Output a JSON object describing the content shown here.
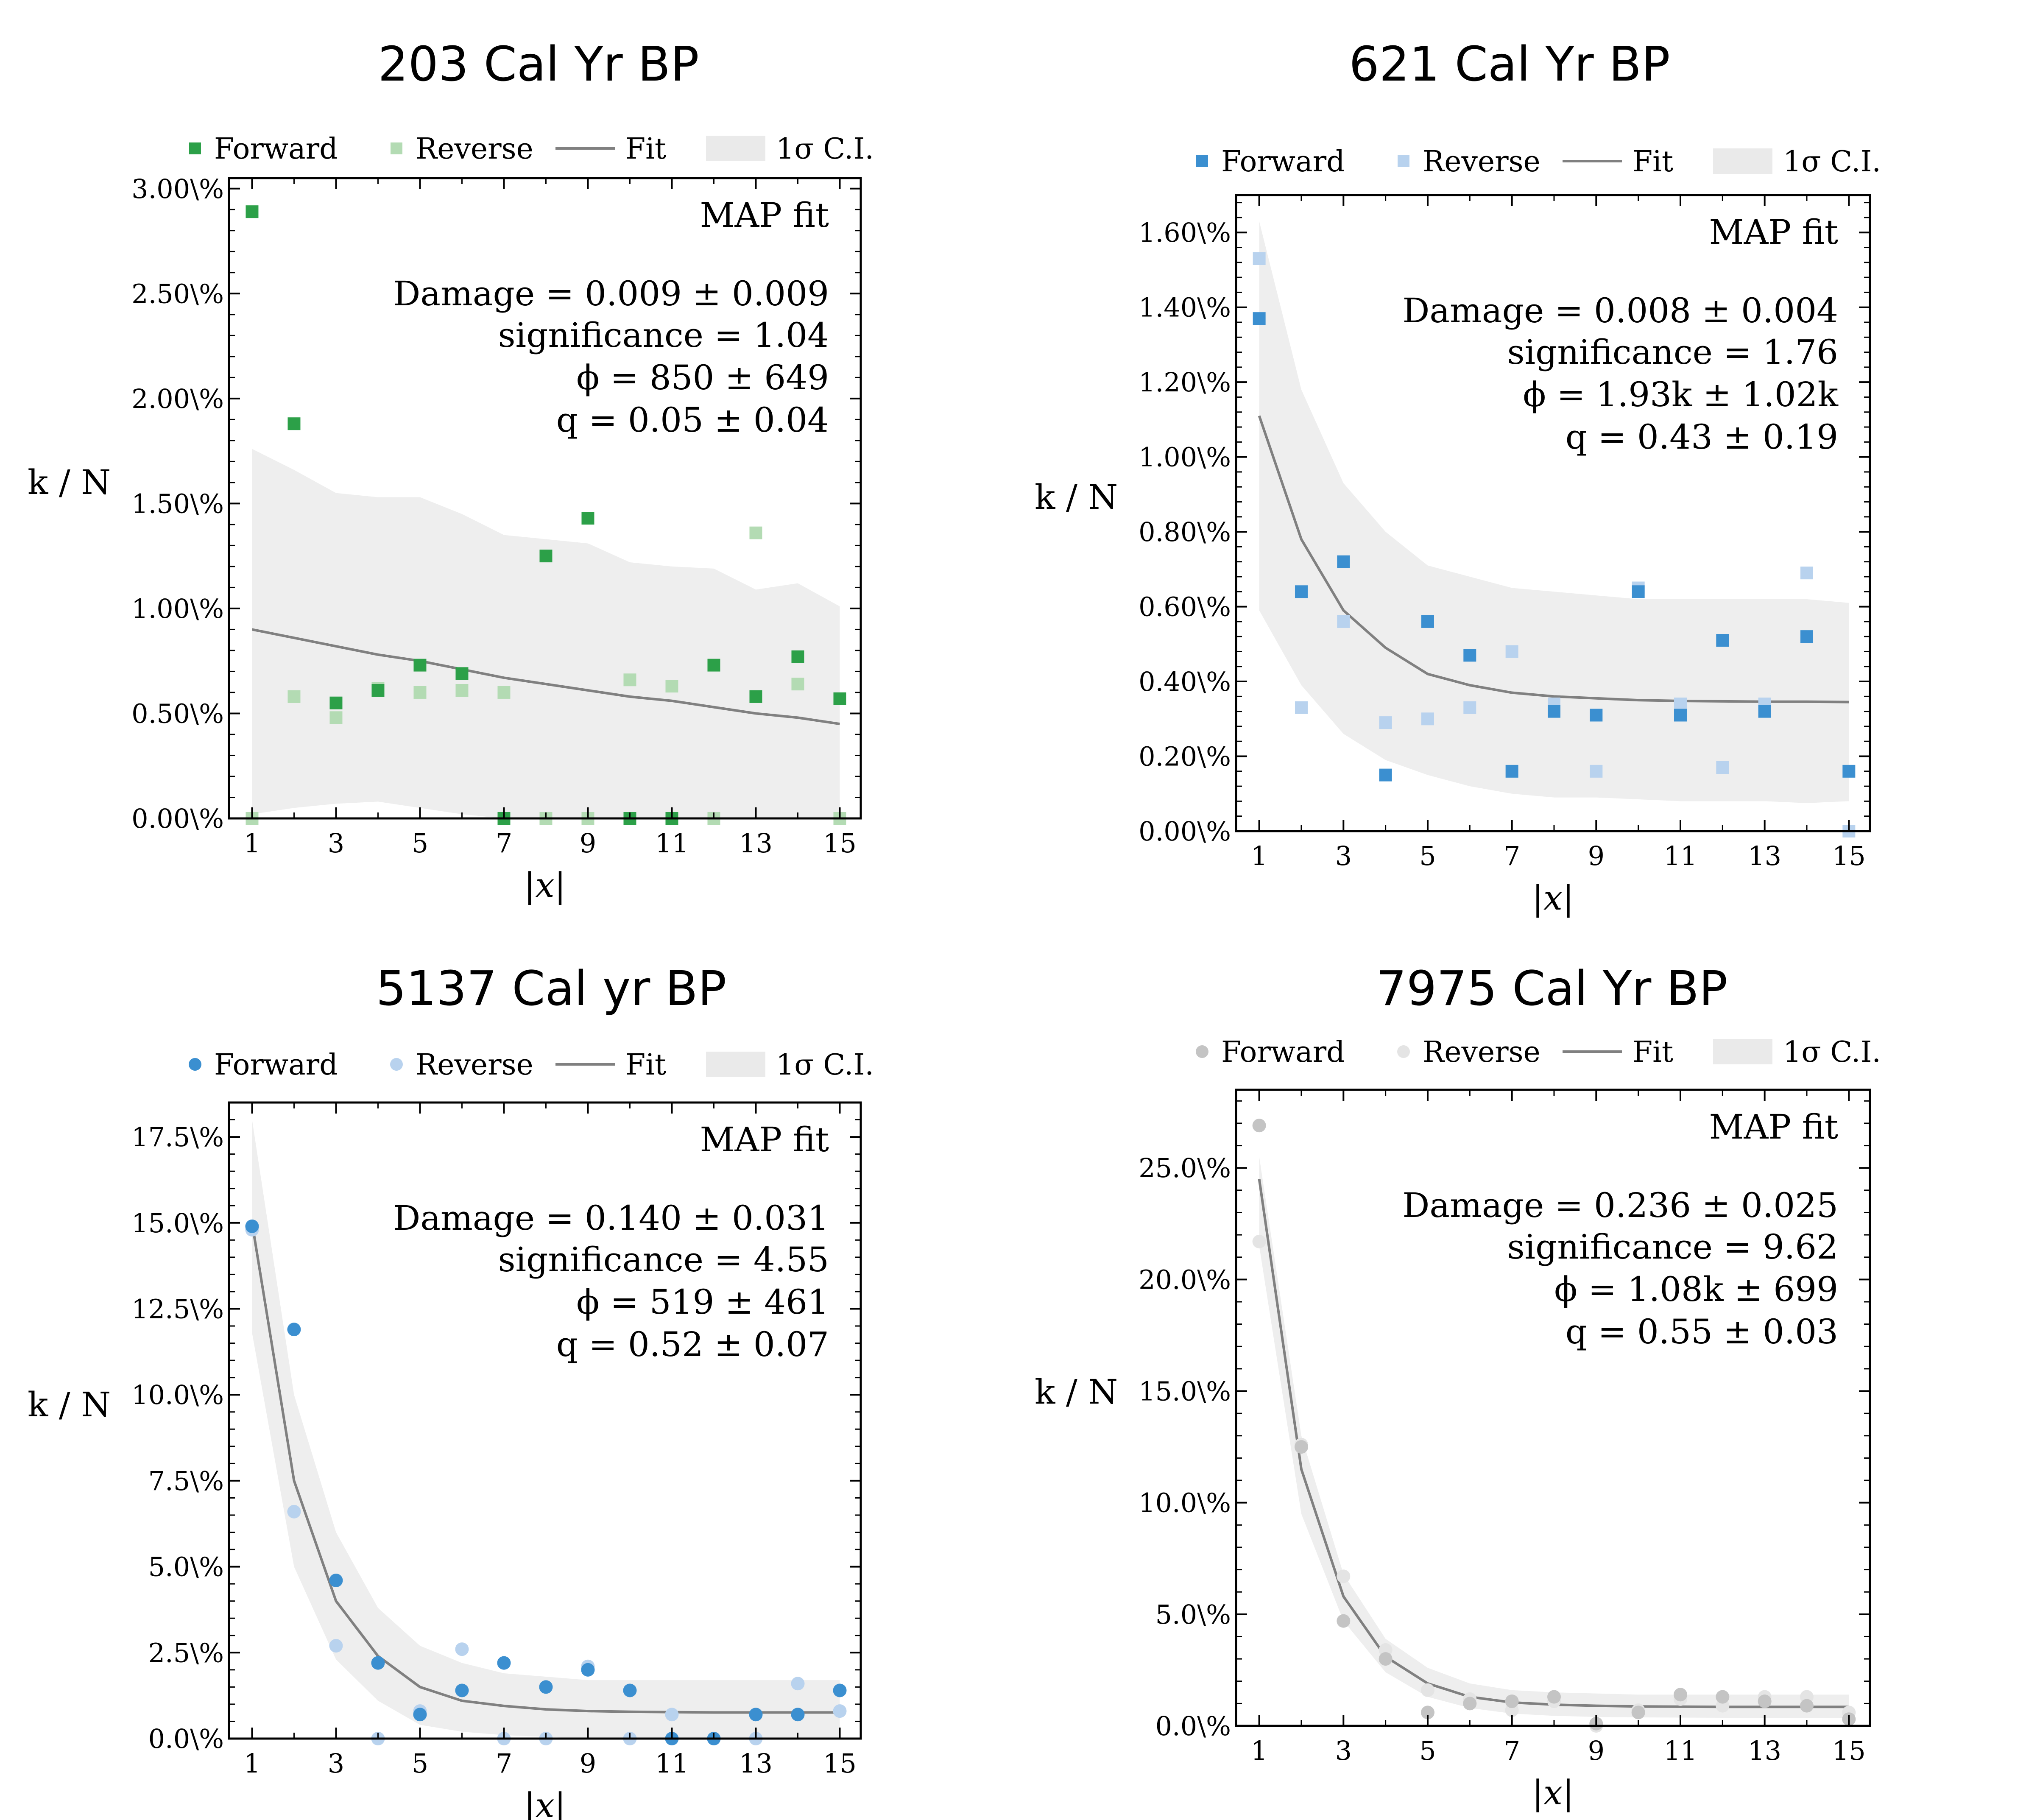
{
  "chart_data": [
    {
      "type": "scatter",
      "title": "203 Cal Yr BP",
      "xlabel": "|x|",
      "ylabel": "k / N",
      "y_tick_labels": [
        "0.00\\%",
        "0.50\\%",
        "1.00\\%",
        "1.50\\%",
        "2.00\\%",
        "2.50\\%",
        "3.00\\%"
      ],
      "x_tick_labels": [
        "1",
        "3",
        "5",
        "7",
        "9",
        "11",
        "13",
        "15"
      ],
      "xlim": [
        0.45,
        15.5
      ],
      "ylim": [
        0,
        3.05
      ],
      "y_ticks": [
        0,
        0.5,
        1.0,
        1.5,
        2.0,
        2.5,
        3.0
      ],
      "x_ticks": [
        1,
        3,
        5,
        7,
        9,
        11,
        13,
        15
      ],
      "marker": "square",
      "legend": [
        "Forward",
        "Reverse",
        "Fit",
        "1σ C.I."
      ],
      "legend_placement": "top",
      "colors": {
        "forward": "#2ca048",
        "reverse": "#b3dbb3",
        "fit": "#808080",
        "band": "#d9d9d9"
      },
      "annotation": {
        "header": "MAP fit",
        "damage": "Damage  = 0.009 ± 0.009",
        "significance": "significance  = 1.04",
        "phi": "ϕ = 850 ± 649",
        "q": "q = 0.05 ± 0.04"
      },
      "x": [
        1,
        2,
        3,
        4,
        5,
        6,
        7,
        8,
        9,
        10,
        11,
        12,
        13,
        14,
        15
      ],
      "series": [
        {
          "name": "Forward",
          "values": [
            2.89,
            1.88,
            0.55,
            0.61,
            0.73,
            0.69,
            0.0,
            1.25,
            1.43,
            0.0,
            0.0,
            0.73,
            0.58,
            0.77,
            0.57
          ]
        },
        {
          "name": "Reverse",
          "values": [
            0.0,
            0.58,
            0.48,
            0.62,
            0.6,
            0.61,
            0.6,
            0.0,
            0.0,
            0.66,
            0.63,
            0.0,
            1.36,
            0.64,
            0.0
          ]
        },
        {
          "name": "Fit",
          "values": [
            0.9,
            0.86,
            0.82,
            0.78,
            0.75,
            0.71,
            0.67,
            0.64,
            0.61,
            0.58,
            0.56,
            0.53,
            0.5,
            0.48,
            0.45
          ]
        }
      ],
      "ci_upper": [
        1.76,
        1.66,
        1.55,
        1.53,
        1.53,
        1.45,
        1.35,
        1.33,
        1.31,
        1.22,
        1.2,
        1.19,
        1.09,
        1.12,
        1.01
      ],
      "ci_lower": [
        0.02,
        0.05,
        0.07,
        0.08,
        0.05,
        0.02,
        0.0,
        0.0,
        0.0,
        0.0,
        0.0,
        0.0,
        0.0,
        0.0,
        0.0
      ]
    },
    {
      "type": "scatter",
      "title": "621 Cal Yr BP",
      "xlabel": "|x|",
      "ylabel": "k / N",
      "y_tick_labels": [
        "0.00\\%",
        "0.20\\%",
        "0.40\\%",
        "0.60\\%",
        "0.80\\%",
        "1.00\\%",
        "1.20\\%",
        "1.40\\%",
        "1.60\\%"
      ],
      "x_tick_labels": [
        "1",
        "3",
        "5",
        "7",
        "9",
        "11",
        "13",
        "15"
      ],
      "xlim": [
        0.45,
        15.5
      ],
      "ylim": [
        0,
        1.7
      ],
      "y_ticks": [
        0,
        0.2,
        0.4,
        0.6,
        0.8,
        1.0,
        1.2,
        1.4,
        1.6
      ],
      "x_ticks": [
        1,
        3,
        5,
        7,
        9,
        11,
        13,
        15
      ],
      "marker": "square",
      "legend": [
        "Forward",
        "Reverse",
        "Fit",
        "1σ C.I."
      ],
      "legend_placement": "top",
      "colors": {
        "forward": "#3b8fd0",
        "reverse": "#b8d2ee",
        "fit": "#808080",
        "band": "#d9d9d9"
      },
      "annotation": {
        "header": "MAP fit",
        "damage": "Damage  = 0.008 ± 0.004",
        "significance": "significance  = 1.76",
        "phi": "ϕ = 1.93k ± 1.02k",
        "q": "q = 0.43 ± 0.19"
      },
      "x": [
        1,
        2,
        3,
        4,
        5,
        6,
        7,
        8,
        9,
        10,
        11,
        12,
        13,
        14,
        15
      ],
      "series": [
        {
          "name": "Forward",
          "values": [
            1.37,
            0.64,
            0.72,
            0.15,
            0.56,
            0.47,
            0.16,
            0.32,
            0.31,
            0.64,
            0.31,
            0.51,
            0.32,
            0.52,
            0.16
          ]
        },
        {
          "name": "Reverse",
          "values": [
            1.53,
            0.33,
            0.56,
            0.29,
            0.3,
            0.33,
            0.48,
            0.34,
            0.16,
            0.65,
            0.34,
            0.17,
            0.34,
            0.69,
            0.0
          ]
        },
        {
          "name": "Fit",
          "values": [
            1.11,
            0.78,
            0.59,
            0.49,
            0.42,
            0.39,
            0.37,
            0.36,
            0.355,
            0.35,
            0.348,
            0.347,
            0.346,
            0.346,
            0.345
          ]
        }
      ],
      "ci_upper": [
        1.63,
        1.18,
        0.93,
        0.8,
        0.71,
        0.68,
        0.65,
        0.64,
        0.63,
        0.62,
        0.62,
        0.62,
        0.62,
        0.62,
        0.61
      ],
      "ci_lower": [
        0.59,
        0.39,
        0.26,
        0.19,
        0.15,
        0.12,
        0.1,
        0.09,
        0.09,
        0.085,
        0.08,
        0.08,
        0.08,
        0.075,
        0.08
      ]
    },
    {
      "type": "scatter",
      "title": "5137 Cal yr BP",
      "xlabel": "|x|",
      "ylabel": "k / N",
      "y_tick_labels": [
        "0.0\\%",
        "2.5\\%",
        "5.0\\%",
        "7.5\\%",
        "10.0\\%",
        "12.5\\%",
        "15.0\\%",
        "17.5\\%"
      ],
      "x_tick_labels": [
        "1",
        "3",
        "5",
        "7",
        "9",
        "11",
        "13",
        "15"
      ],
      "xlim": [
        0.45,
        15.5
      ],
      "ylim": [
        0,
        18.5
      ],
      "y_ticks": [
        0,
        2.5,
        5.0,
        7.5,
        10.0,
        12.5,
        15.0,
        17.5
      ],
      "x_ticks": [
        1,
        3,
        5,
        7,
        9,
        11,
        13,
        15
      ],
      "marker": "circle",
      "legend": [
        "Forward",
        "Reverse",
        "Fit",
        "1σ C.I."
      ],
      "legend_placement": "top",
      "colors": {
        "forward": "#3b8fd0",
        "reverse": "#b8d2ee",
        "fit": "#808080",
        "band": "#d9d9d9"
      },
      "annotation": {
        "header": "MAP fit",
        "damage": "Damage  = 0.140 ± 0.031",
        "significance": "significance  = 4.55",
        "phi": "ϕ = 519 ± 461",
        "q": "q = 0.52 ± 0.07"
      },
      "x": [
        1,
        2,
        3,
        4,
        5,
        6,
        7,
        8,
        9,
        10,
        11,
        12,
        13,
        14,
        15
      ],
      "series": [
        {
          "name": "Forward",
          "values": [
            14.9,
            11.9,
            4.6,
            2.2,
            0.7,
            1.4,
            2.2,
            1.5,
            2.0,
            1.4,
            0.0,
            0.0,
            0.7,
            0.7,
            1.4
          ]
        },
        {
          "name": "Reverse",
          "values": [
            14.8,
            6.6,
            2.7,
            0.0,
            0.8,
            2.6,
            0.0,
            0.0,
            2.1,
            0.0,
            0.7,
            0.0,
            0.0,
            1.6,
            0.8
          ]
        },
        {
          "name": "Fit",
          "values": [
            15.0,
            7.5,
            4.0,
            2.4,
            1.5,
            1.1,
            0.95,
            0.85,
            0.8,
            0.78,
            0.77,
            0.76,
            0.76,
            0.76,
            0.76
          ]
        }
      ],
      "ci_upper": [
        18.0,
        10.0,
        6.0,
        3.8,
        2.7,
        2.2,
        1.9,
        1.8,
        1.7,
        1.7,
        1.7,
        1.7,
        1.7,
        1.7,
        1.7
      ],
      "ci_lower": [
        11.8,
        5.0,
        2.3,
        1.1,
        0.4,
        0.2,
        0.1,
        0.05,
        0.0,
        0.0,
        0.0,
        0.0,
        0.0,
        0.0,
        0.0
      ]
    },
    {
      "type": "scatter",
      "title": "7975 Cal Yr BP",
      "xlabel": "|x|",
      "ylabel": "k / N",
      "y_tick_labels": [
        "0.0\\%",
        "5.0\\%",
        "10.0\\%",
        "15.0\\%",
        "20.0\\%",
        "25.0\\%"
      ],
      "x_tick_labels": [
        "1",
        "3",
        "5",
        "7",
        "9",
        "11",
        "13",
        "15"
      ],
      "xlim": [
        0.45,
        15.5
      ],
      "ylim": [
        0,
        28.5
      ],
      "y_ticks": [
        0,
        5,
        10,
        15,
        20,
        25
      ],
      "x_ticks": [
        1,
        3,
        5,
        7,
        9,
        11,
        13,
        15
      ],
      "marker": "circle",
      "legend": [
        "Forward",
        "Reverse",
        "Fit",
        "1σ C.I."
      ],
      "legend_placement": "top",
      "colors": {
        "forward": "#c4c4c4",
        "reverse": "#e4e4e4",
        "fit": "#808080",
        "band": "#d9d9d9"
      },
      "annotation": {
        "header": "MAP fit",
        "damage": "Damage  = 0.236 ± 0.025",
        "significance": "significance  = 9.62",
        "phi": "ϕ = 1.08k ± 699",
        "q": "q = 0.55 ± 0.03"
      },
      "x": [
        1,
        2,
        3,
        4,
        5,
        6,
        7,
        8,
        9,
        10,
        11,
        12,
        13,
        14,
        15
      ],
      "series": [
        {
          "name": "Forward",
          "values": [
            26.9,
            12.5,
            4.7,
            3.0,
            0.6,
            1.0,
            1.1,
            1.3,
            0.1,
            0.6,
            1.4,
            1.3,
            1.1,
            0.9,
            0.3
          ]
        },
        {
          "name": "Reverse",
          "values": [
            21.7,
            12.6,
            6.7,
            3.4,
            1.6,
            1.2,
            0.7,
            1.1,
            0.0,
            0.7,
            1.2,
            0.9,
            1.3,
            1.3,
            0.6
          ]
        },
        {
          "name": "Fit",
          "values": [
            24.5,
            11.5,
            5.8,
            3.1,
            1.9,
            1.3,
            1.05,
            0.95,
            0.9,
            0.87,
            0.86,
            0.85,
            0.85,
            0.85,
            0.85
          ]
        }
      ],
      "ci_upper": [
        25.5,
        13.0,
        6.8,
        3.9,
        2.6,
        1.9,
        1.6,
        1.5,
        1.45,
        1.4,
        1.4,
        1.4,
        1.4,
        1.4,
        1.4
      ],
      "ci_lower": [
        21.5,
        9.5,
        4.7,
        2.4,
        1.3,
        0.8,
        0.55,
        0.45,
        0.4,
        0.38,
        0.37,
        0.36,
        0.36,
        0.36,
        0.36
      ]
    }
  ]
}
